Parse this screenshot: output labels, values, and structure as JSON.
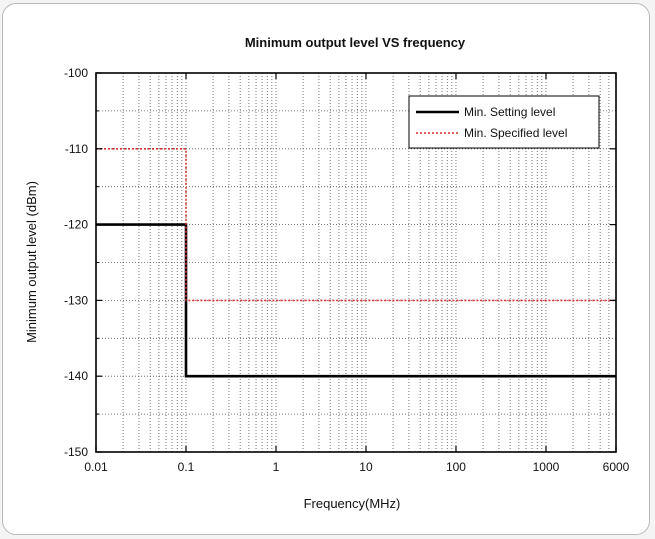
{
  "chart_data": {
    "type": "line",
    "title": "Minimum output level VS frequency",
    "xlabel": "Frequency(MHz)",
    "ylabel": "Minimum output level (dBm)",
    "xscale": "log",
    "xlim": [
      0.01,
      6000
    ],
    "ylim": [
      -150,
      -100
    ],
    "xticks": [
      0.01,
      0.1,
      1,
      10,
      100,
      1000,
      6000
    ],
    "xtick_labels": [
      "0.01",
      "0.1",
      "1",
      "10",
      "100",
      "1000",
      "6000"
    ],
    "yticks": [
      -100,
      -110,
      -120,
      -130,
      -140,
      -150
    ],
    "ytick_labels": [
      "-100",
      "-110",
      "-120",
      "-130",
      "-140",
      "-150"
    ],
    "grid": true,
    "legend_position": "top-right",
    "series": [
      {
        "name": "Min. Setting level",
        "style": "solid",
        "color": "#000000",
        "x": [
          0.01,
          0.1,
          0.1,
          6000
        ],
        "y": [
          -120,
          -120,
          -140,
          -140
        ]
      },
      {
        "name": "Min. Specified level",
        "style": "dotted",
        "color": "#d9302b",
        "x": [
          0.01,
          0.1,
          0.1,
          6000
        ],
        "y": [
          -110,
          -110,
          -130,
          -130
        ]
      }
    ]
  }
}
